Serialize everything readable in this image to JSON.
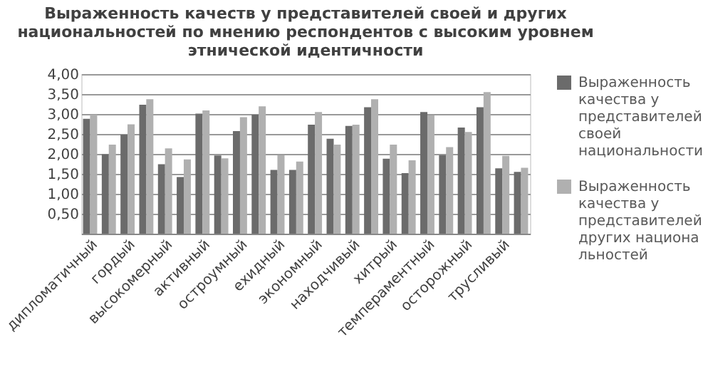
{
  "chart_data": {
    "type": "bar",
    "title": "Выраженность качеств у представителей своей и других национальностей по мнению респондентов с высоким уровнем этнической идентичности",
    "categories": [
      "дипломатичный",
      null,
      "гордый",
      null,
      "высокомерный",
      null,
      "активный",
      null,
      "остроумный",
      null,
      "ехидный",
      null,
      "экономный",
      null,
      "находчивый",
      null,
      "хитрый",
      null,
      "темпераментный",
      null,
      "осторожный",
      null,
      "трусливый",
      null
    ],
    "series": [
      {
        "name": "Выраженность качества у представителей своей национальности",
        "color": "#6b6b6b",
        "values": [
          2.88,
          1.99,
          2.48,
          3.23,
          1.74,
          1.42,
          3.01,
          1.96,
          2.57,
          2.98,
          1.6,
          1.6,
          2.73,
          2.38,
          2.7,
          3.17,
          1.88,
          1.52,
          3.05,
          1.97,
          2.66,
          3.17,
          1.64,
          1.55
        ]
      },
      {
        "name": "Выраженность качества у представителей других национальностей",
        "color": "#b0b0b0",
        "values": [
          2.98,
          2.23,
          2.74,
          3.37,
          2.14,
          1.86,
          3.09,
          1.89,
          2.92,
          3.19,
          1.97,
          1.81,
          3.05,
          2.23,
          2.73,
          3.37,
          2.23,
          1.84,
          2.97,
          2.17,
          2.55,
          3.55,
          1.95,
          1.65
        ]
      }
    ],
    "ylim": [
      0,
      4
    ],
    "yticks": [
      {
        "value": 0.5,
        "label": "0,50"
      },
      {
        "value": 1,
        "label": "1,00"
      },
      {
        "value": 1.5,
        "label": "1,50"
      },
      {
        "value": 2,
        "label": "2,00"
      },
      {
        "value": 2.5,
        "label": "2,50"
      },
      {
        "value": 3,
        "label": "3,00"
      },
      {
        "value": 3.5,
        "label": "3,50"
      },
      {
        "value": 4,
        "label": "4,00"
      }
    ],
    "grid": "y",
    "legend": "right"
  }
}
